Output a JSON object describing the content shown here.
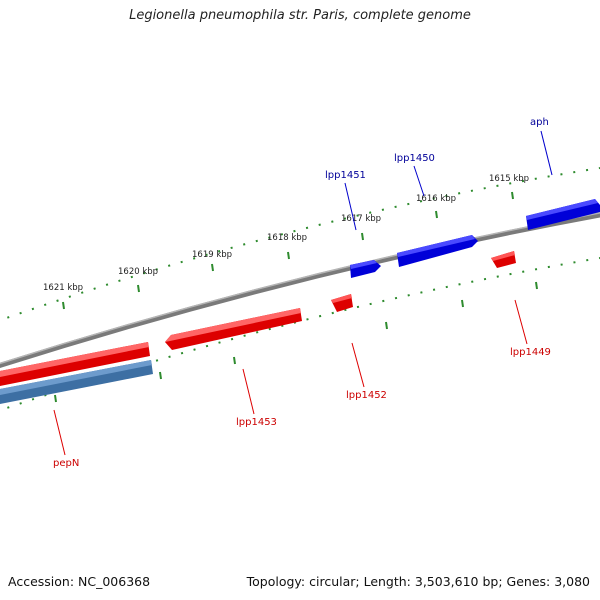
{
  "title": "Legionella pneumophila str. Paris, complete genome",
  "accession": "Accession: NC_006368",
  "summary": "Topology: circular; Length: 3,503,610 bp; Genes: 3,080",
  "colors": {
    "forward_gene": "#0000ee",
    "reverse_gene": "#ee0000",
    "reverse_gene_alt": "#4a7fb5",
    "backbone": "#808080",
    "ticks": "#2e8b2e",
    "label_fwd": "#000099",
    "label_rev": "#cc0000"
  },
  "scale_labels": [
    "1621 kbp",
    "1620 kbp",
    "1619 kbp",
    "1618 kbp",
    "1617 kbp",
    "1616 kbp",
    "1615 kbp"
  ],
  "genes": [
    {
      "name": "aph",
      "strand": "forward"
    },
    {
      "name": "lpp1450",
      "strand": "forward"
    },
    {
      "name": "lpp1451",
      "strand": "forward"
    },
    {
      "name": "lpp1449",
      "strand": "reverse"
    },
    {
      "name": "lpp1452",
      "strand": "reverse"
    },
    {
      "name": "lpp1453",
      "strand": "reverse"
    },
    {
      "name": "pepN",
      "strand": "reverse"
    }
  ]
}
